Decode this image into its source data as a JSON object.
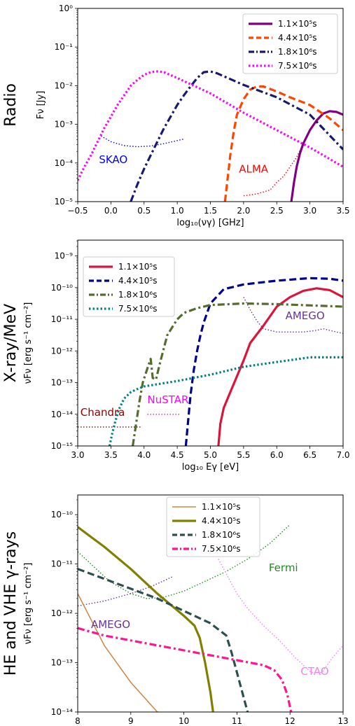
{
  "colors": {
    "purple": "#800080",
    "orange": "#ff4500",
    "navy": "#191970",
    "magenta": "#ff00ff",
    "crimson": "#dc143c",
    "darkblue": "#00008b",
    "olive_dark": "#556b2f",
    "teal": "#008080",
    "tan": "#cd853f",
    "olive": "#808000",
    "darkslate": "#2f4f4f",
    "pink": "#ff1493",
    "green": "#228b22",
    "violet": "#ee82ee",
    "amego": "#663399",
    "blue": "#0000ff",
    "red": "#ff0000",
    "darkred": "#8b0000"
  },
  "chart_data": [
    {
      "type": "line",
      "row_label": "Radio",
      "xlabel": "log₁₀(νγ) [GHz]",
      "ylabel": "Fν [Jy]",
      "xlim": [
        -0.5,
        3.5
      ],
      "ylim_log10": [
        -5,
        0
      ],
      "xticks": [
        "−0.5",
        "0.0",
        "0.5",
        "1.0",
        "1.5",
        "2.0",
        "2.5",
        "3.0",
        "3.5"
      ],
      "xtick_values": [
        -0.5,
        0,
        0.5,
        1.0,
        1.5,
        2.0,
        2.5,
        3.0,
        3.5
      ],
      "yticks": [
        "10⁻⁵",
        "10⁻⁴",
        "10⁻³",
        "10⁻²",
        "10⁻¹",
        "10⁰"
      ],
      "ytick_values_log10": [
        -5,
        -4,
        -3,
        -2,
        -1,
        0
      ],
      "legend_position": "top-right",
      "series": [
        {
          "name": "1.1×10⁵s",
          "color": "purple",
          "style": "solid",
          "x": [
            2.72,
            2.76,
            2.8,
            2.85,
            2.9,
            3.0,
            3.1,
            3.2,
            3.3,
            3.4,
            3.5
          ],
          "y_log10": [
            -5.0,
            -4.5,
            -4.1,
            -3.75,
            -3.5,
            -3.15,
            -2.9,
            -2.72,
            -2.66,
            -2.68,
            -2.75
          ]
        },
        {
          "name": "4.4×10⁵s",
          "color": "orange",
          "style": "dashed",
          "x": [
            1.72,
            1.76,
            1.8,
            1.85,
            1.9,
            2.0,
            2.1,
            2.2,
            2.3,
            2.5,
            2.7,
            3.0,
            3.3,
            3.5
          ],
          "y_log10": [
            -5.0,
            -4.4,
            -3.8,
            -3.2,
            -2.75,
            -2.35,
            -2.1,
            -2.02,
            -2.02,
            -2.15,
            -2.3,
            -2.5,
            -2.85,
            -3.15
          ]
        },
        {
          "name": "1.8×10⁶s",
          "color": "navy",
          "style": "dashdot",
          "x": [
            0.3,
            0.4,
            0.5,
            0.6,
            0.7,
            0.8,
            0.9,
            1.0,
            1.1,
            1.2,
            1.3,
            1.4,
            1.5,
            1.6,
            2.0,
            2.5,
            3.0,
            3.5
          ],
          "y_log10": [
            -5.0,
            -4.55,
            -4.15,
            -3.8,
            -3.45,
            -3.1,
            -2.8,
            -2.5,
            -2.25,
            -2.02,
            -1.8,
            -1.65,
            -1.63,
            -1.68,
            -1.98,
            -2.3,
            -2.75,
            -3.65
          ]
        },
        {
          "name": "7.5×10⁶s",
          "color": "magenta",
          "style": "dotted",
          "x": [
            -0.5,
            -0.4,
            -0.3,
            -0.2,
            -0.1,
            0.0,
            0.1,
            0.2,
            0.3,
            0.4,
            0.5,
            0.6,
            0.7,
            0.8,
            1.0,
            1.5,
            2.0,
            2.5,
            3.0,
            3.5
          ],
          "y_log10": [
            -4.45,
            -4.1,
            -3.8,
            -3.45,
            -3.1,
            -2.8,
            -2.5,
            -2.25,
            -2.0,
            -1.85,
            -1.72,
            -1.65,
            -1.63,
            -1.65,
            -1.8,
            -2.2,
            -2.7,
            -3.15,
            -3.6,
            -4.1
          ]
        }
      ],
      "sensitivity": [
        {
          "label": "SKAO",
          "color": "blue",
          "x": [
            -0.15,
            0.0,
            0.2,
            0.4,
            0.6,
            0.8,
            1.0,
            1.1
          ],
          "y_log10": [
            -3.3,
            -3.45,
            -3.55,
            -3.58,
            -3.56,
            -3.5,
            -3.42,
            -3.38
          ],
          "label_pos": [
            -0.18,
            -4.0
          ]
        },
        {
          "label": "ALMA",
          "color": "red",
          "x": [
            2.0,
            2.2,
            2.4,
            2.5,
            2.6,
            2.7,
            2.8,
            2.9,
            2.95
          ],
          "y_log10": [
            -4.85,
            -4.8,
            -4.7,
            -4.5,
            -4.35,
            -4.1,
            -3.85,
            -3.5,
            -3.3
          ],
          "label_pos": [
            1.93,
            -4.25
          ]
        }
      ]
    },
    {
      "type": "line",
      "row_label": "X-ray/MeV",
      "xlabel": "log₁₀ Eγ [eV]",
      "ylabel": "νFν [erg s⁻¹ cm⁻²]",
      "xlim": [
        3.0,
        7.0
      ],
      "ylim_log10": [
        -15,
        -8.5
      ],
      "xticks": [
        "3.0",
        "3.5",
        "4.0",
        "4.5",
        "5.0",
        "5.5",
        "6.0",
        "6.5",
        "7.0"
      ],
      "xtick_values": [
        3.0,
        3.5,
        4.0,
        4.5,
        5.0,
        5.5,
        6.0,
        6.5,
        7.0
      ],
      "yticks": [
        "10⁻¹⁵",
        "10⁻¹⁴",
        "10⁻¹³",
        "10⁻¹²",
        "10⁻¹¹",
        "10⁻¹⁰",
        "10⁻⁹"
      ],
      "ytick_values_log10": [
        -15,
        -14,
        -13,
        -12,
        -11,
        -10,
        -9
      ],
      "legend_position": "top-left",
      "series": [
        {
          "name": "1.1×10⁵s",
          "color": "crimson",
          "style": "solid",
          "x": [
            5.12,
            5.15,
            5.2,
            5.3,
            5.4,
            5.5,
            5.6,
            5.8,
            6.0,
            6.2,
            6.4,
            6.6,
            6.8,
            7.0
          ],
          "y_log10": [
            -15.0,
            -14.3,
            -13.8,
            -13.3,
            -12.8,
            -12.3,
            -11.75,
            -11.2,
            -10.6,
            -10.3,
            -10.1,
            -10.02,
            -10.08,
            -10.3
          ]
        },
        {
          "name": "4.4×10⁵s",
          "color": "darkblue",
          "style": "dashed",
          "x": [
            4.63,
            4.66,
            4.7,
            4.75,
            4.8,
            4.85,
            4.9,
            5.0,
            5.2,
            5.5,
            6.0,
            6.5,
            6.8,
            7.0
          ],
          "y_log10": [
            -15.0,
            -14.3,
            -13.4,
            -12.6,
            -12.0,
            -11.5,
            -11.1,
            -10.5,
            -10.05,
            -9.9,
            -9.78,
            -9.7,
            -9.72,
            -9.78
          ]
        },
        {
          "name": "1.8×10⁶s",
          "color": "olive_dark",
          "style": "dashdot",
          "x": [
            3.83,
            3.88,
            3.93,
            3.98,
            4.05,
            4.1,
            4.13,
            4.18,
            4.25,
            4.35,
            4.5,
            4.6,
            4.8,
            5.0,
            5.5,
            6.0,
            6.5,
            7.0
          ],
          "y_log10": [
            -15.0,
            -14.3,
            -13.6,
            -13.0,
            -12.55,
            -12.25,
            -12.85,
            -12.9,
            -12.3,
            -11.5,
            -11.0,
            -10.8,
            -10.65,
            -10.55,
            -10.5,
            -10.52,
            -10.56,
            -10.6
          ]
        },
        {
          "name": "7.5×10⁶s",
          "color": "teal",
          "style": "dotted",
          "x": [
            3.48,
            3.52,
            3.57,
            3.62,
            3.7,
            3.8,
            3.9,
            4.0,
            4.2,
            4.5,
            5.0,
            5.5,
            6.0,
            6.5,
            7.0
          ],
          "y_log10": [
            -15.0,
            -14.6,
            -14.2,
            -13.85,
            -13.5,
            -13.3,
            -13.2,
            -13.12,
            -13.05,
            -12.95,
            -12.75,
            -12.5,
            -12.35,
            -12.2,
            -12.2
          ]
        }
      ],
      "sensitivity": [
        {
          "label": "Chandra",
          "color": "darkred",
          "x": [
            3.0,
            3.95
          ],
          "y_log10": [
            -14.4,
            -14.4
          ],
          "label_pos": [
            3.04,
            -14.05
          ]
        },
        {
          "label": "NuSTAR",
          "color": "magenta",
          "x": [
            4.05,
            4.55
          ],
          "y_log10": [
            -14.0,
            -14.0
          ],
          "label_pos": [
            4.05,
            -13.65
          ]
        },
        {
          "label": "AMEGO",
          "color": "amego",
          "x": [
            5.5,
            5.6,
            5.7,
            5.8,
            6.0,
            6.2,
            6.4,
            6.6,
            6.7,
            6.8,
            7.0
          ],
          "y_log10": [
            -10.3,
            -10.7,
            -11.05,
            -11.3,
            -11.4,
            -11.4,
            -11.4,
            -11.35,
            -11.3,
            -11.35,
            -11.45
          ],
          "label_pos": [
            6.13,
            -11.0
          ]
        }
      ]
    },
    {
      "type": "line",
      "row_label": "HE and VHE γ-rays",
      "xlabel": "log₁₀ Eγ [eV]",
      "ylabel": "νFν [erg s⁻¹ cm⁻²]",
      "xlim": [
        8,
        13
      ],
      "ylim_log10": [
        -14,
        -9.6
      ],
      "xticks": [
        "8",
        "9",
        "10",
        "11",
        "12",
        "13"
      ],
      "xtick_values": [
        8,
        9,
        10,
        11,
        12,
        13
      ],
      "yticks": [
        "10⁻¹⁴",
        "10⁻¹³",
        "10⁻¹²",
        "10⁻¹¹",
        "10⁻¹⁰"
      ],
      "ytick_values_log10": [
        -14,
        -13,
        -12,
        -11,
        -10
      ],
      "legend_position": "top-center",
      "series": [
        {
          "name": "1.1×10⁵s",
          "color": "tan",
          "style": "solid",
          "x": [
            8.0,
            8.5,
            9.0,
            9.5,
            9.52
          ],
          "y_log10": [
            -11.6,
            -12.65,
            -13.4,
            -14.0,
            -14.0
          ]
        },
        {
          "name": "4.4×10⁵s",
          "color": "olive",
          "style": "solid",
          "x": [
            8.0,
            8.5,
            9.0,
            9.5,
            10.0,
            10.2,
            10.3,
            10.4,
            10.5,
            10.55
          ],
          "y_log10": [
            -10.25,
            -10.65,
            -11.1,
            -11.6,
            -12.05,
            -12.25,
            -12.5,
            -13.0,
            -13.6,
            -14.0
          ]
        },
        {
          "name": "1.8×10⁶s",
          "color": "darkslate",
          "style": "dashed",
          "x": [
            8.0,
            8.5,
            9.0,
            9.5,
            10.0,
            10.5,
            10.8,
            10.9,
            11.0,
            11.1,
            11.2
          ],
          "y_log10": [
            -11.1,
            -11.3,
            -11.5,
            -11.7,
            -11.95,
            -12.2,
            -12.45,
            -12.8,
            -13.2,
            -13.6,
            -14.0
          ]
        },
        {
          "name": "7.5×10⁶s",
          "color": "pink",
          "style": "dashdot",
          "x": [
            8.0,
            8.5,
            9.0,
            9.5,
            10.0,
            10.5,
            11.0,
            11.5,
            11.7,
            11.85,
            11.95,
            12.02
          ],
          "y_log10": [
            -12.3,
            -12.45,
            -12.55,
            -12.65,
            -12.75,
            -12.85,
            -12.95,
            -13.05,
            -13.15,
            -13.35,
            -13.65,
            -14.0
          ]
        }
      ],
      "sensitivity": [
        {
          "label": "Fermi",
          "color": "green",
          "x": [
            8.0,
            8.3,
            8.6,
            9.0,
            9.3,
            9.6,
            10.0,
            10.4,
            10.8,
            11.2,
            11.6,
            12.0
          ],
          "y_log10": [
            -10.75,
            -11.05,
            -11.35,
            -11.6,
            -11.7,
            -11.68,
            -11.55,
            -11.35,
            -11.15,
            -10.9,
            -10.6,
            -10.2
          ],
          "label_pos": [
            11.6,
            -11.15
          ]
        },
        {
          "label": "AMEGO",
          "color": "amego",
          "x": [
            8.0,
            8.5,
            9.0,
            9.4,
            9.8
          ],
          "y_log10": [
            -11.85,
            -11.75,
            -11.6,
            -11.45,
            -11.25
          ],
          "label_pos": [
            8.25,
            -12.3
          ]
        },
        {
          "label": "CTAO",
          "color": "violet",
          "x": [
            10.65,
            10.8,
            11.0,
            11.2,
            11.5,
            11.8,
            12.1,
            12.4,
            12.6,
            12.8,
            13.0
          ],
          "y_log10": [
            -10.9,
            -11.2,
            -11.6,
            -11.9,
            -12.25,
            -12.55,
            -12.9,
            -13.2,
            -13.2,
            -12.9,
            -12.65
          ],
          "label_pos": [
            12.2,
            -13.25
          ]
        }
      ]
    }
  ]
}
